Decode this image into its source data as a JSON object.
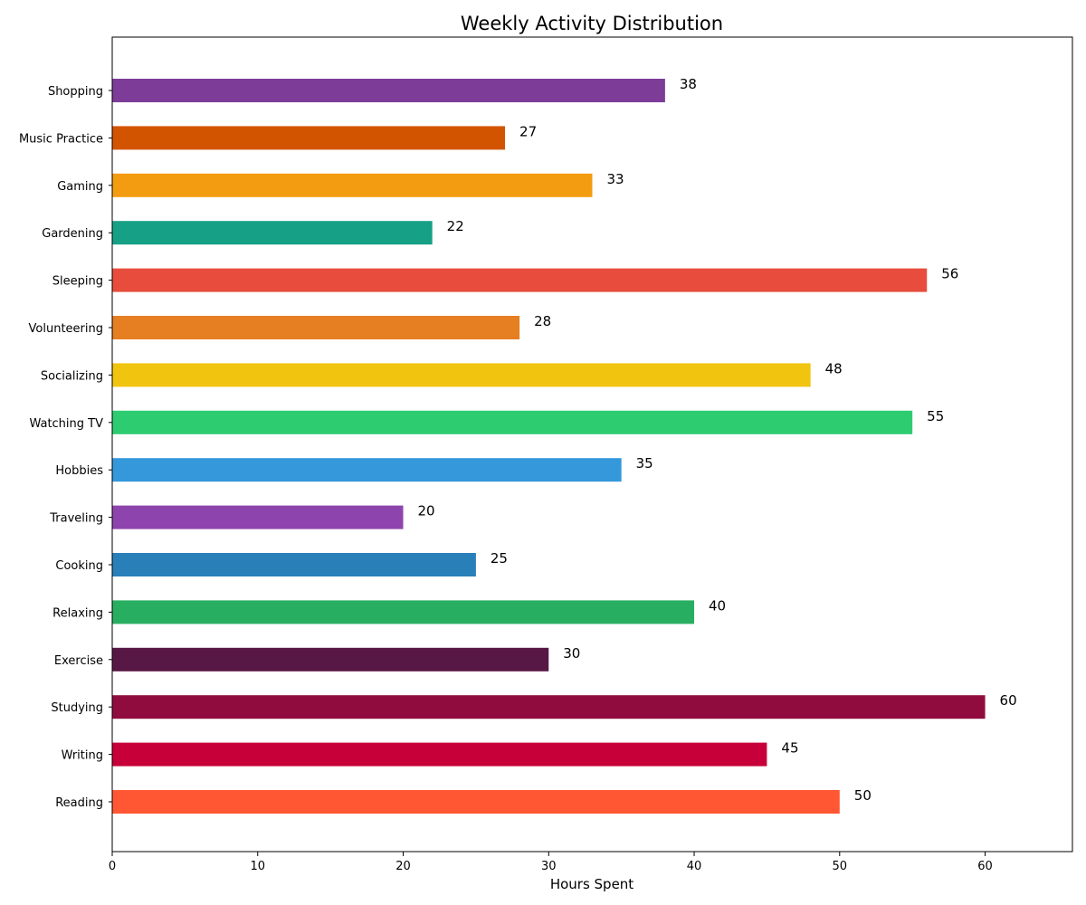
{
  "chart_data": {
    "type": "bar",
    "orientation": "horizontal",
    "title": "Weekly Activity Distribution",
    "xlabel": "Hours Spent",
    "ylabel": "",
    "xlim": [
      0,
      66
    ],
    "xticks": [
      0,
      10,
      20,
      30,
      40,
      50,
      60
    ],
    "grid": false,
    "categories": [
      "Reading",
      "Writing",
      "Studying",
      "Exercise",
      "Relaxing",
      "Cooking",
      "Traveling",
      "Hobbies",
      "Watching TV",
      "Socializing",
      "Volunteering",
      "Sleeping",
      "Gardening",
      "Gaming",
      "Music Practice",
      "Shopping"
    ],
    "values": [
      50,
      45,
      60,
      30,
      40,
      25,
      20,
      35,
      55,
      48,
      28,
      56,
      22,
      33,
      27,
      38
    ],
    "colors": [
      "#FF5733",
      "#C70039",
      "#900C3F",
      "#581845",
      "#27AE60",
      "#2980B9",
      "#8E44AD",
      "#3498DB",
      "#2ECC71",
      "#F1C40F",
      "#E67E22",
      "#E74C3C",
      "#16A085",
      "#F39C12",
      "#D35400",
      "#7D3C98"
    ]
  }
}
